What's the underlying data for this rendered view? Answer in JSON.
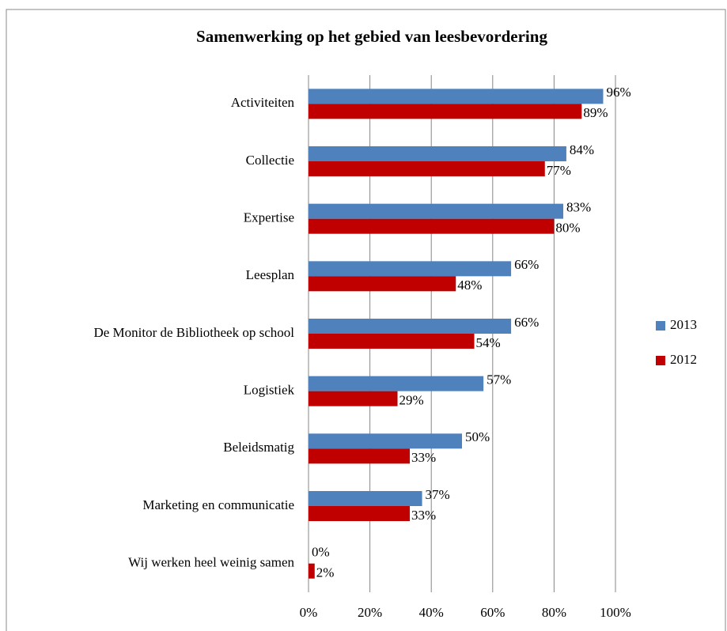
{
  "chart_data": {
    "type": "bar",
    "orientation": "horizontal",
    "title": "Samenwerking op het gebied van leesbevordering",
    "categories": [
      "Activiteiten",
      "Collectie",
      "Expertise",
      "Leesplan",
      "De Monitor de Bibliotheek op school",
      "Logistiek",
      "Beleidsmatig",
      "Marketing en communicatie",
      "Wij werken heel weinig samen"
    ],
    "series": [
      {
        "name": "2013",
        "color": "#4f81bd",
        "values": [
          96,
          84,
          83,
          66,
          66,
          57,
          50,
          37,
          0
        ],
        "value_labels": [
          "96%",
          "84%",
          "83%",
          "66%",
          "66%",
          "57%",
          "50%",
          "37%",
          "0%"
        ]
      },
      {
        "name": "2012",
        "color": "#c00000",
        "values": [
          89,
          77,
          80,
          48,
          54,
          29,
          33,
          33,
          2
        ],
        "value_labels": [
          "89%",
          "77%",
          "80%",
          "48%",
          "54%",
          "29%",
          "33%",
          "33%",
          "2%"
        ]
      }
    ],
    "xlim": [
      0,
      100
    ],
    "xticks": [
      {
        "value": 0,
        "label": "0%"
      },
      {
        "value": 20,
        "label": "20%"
      },
      {
        "value": 40,
        "label": "40%"
      },
      {
        "value": 60,
        "label": "60%"
      },
      {
        "value": 80,
        "label": "80%"
      },
      {
        "value": 100,
        "label": "100%"
      }
    ],
    "grid": true,
    "legend": "right"
  }
}
